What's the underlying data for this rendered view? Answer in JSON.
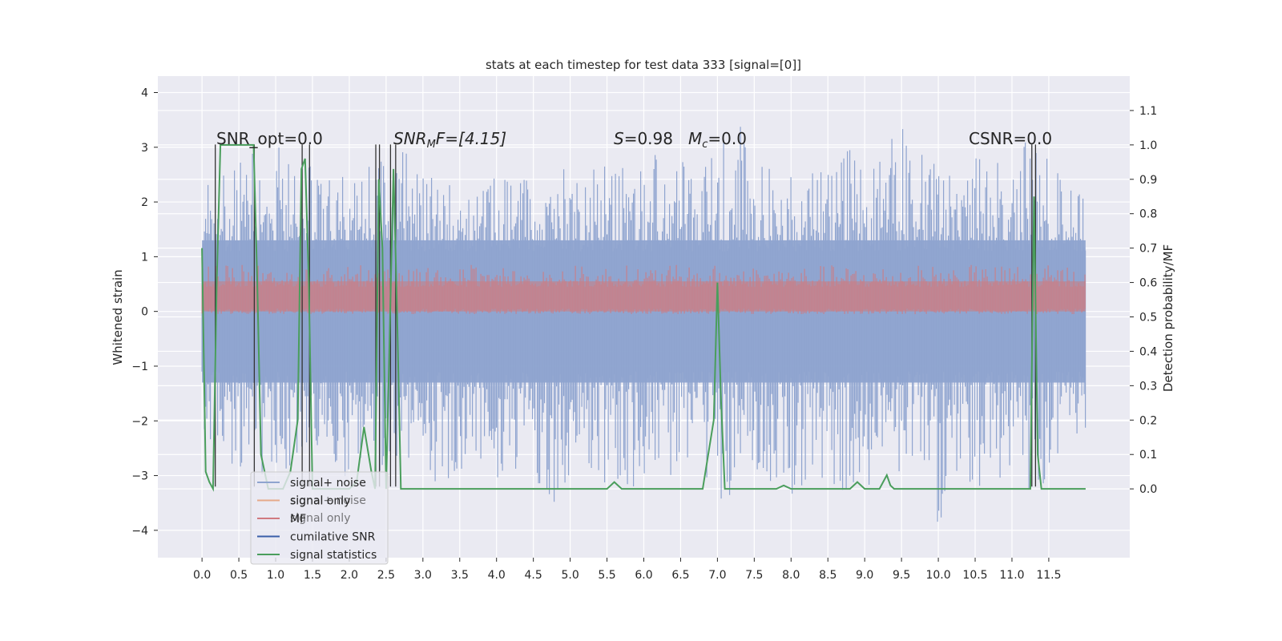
{
  "chart_data": {
    "type": "line",
    "title": "stats at each timestep for test data 333 [signal=[0]]",
    "ylabel": "Whitened strain",
    "y2label": "Detection probability/MF",
    "xlim": [
      -0.6,
      12.6
    ],
    "ylim": [
      -4.5,
      4.3
    ],
    "y2lim": [
      -0.2,
      1.2
    ],
    "xticks": [
      "0.0",
      "0.5",
      "1.0",
      "1.5",
      "2.0",
      "2.5",
      "3.0",
      "3.5",
      "4.0",
      "4.5",
      "5.0",
      "5.5",
      "6.0",
      "6.5",
      "7.0",
      "7.5",
      "8.0",
      "8.5",
      "9.0",
      "9.5",
      "10.0",
      "10.5",
      "11.0",
      "11.5"
    ],
    "yticks": [
      "4",
      "3",
      "2",
      "1",
      "0",
      "−1",
      "−2",
      "−3",
      "−4"
    ],
    "y2ticks": [
      "1.1",
      "1.0",
      "0.9",
      "0.8",
      "0.7",
      "0.6",
      "0.5",
      "0.4",
      "0.3",
      "0.2",
      "0.1",
      "0.0"
    ],
    "grid": true,
    "legend_position": "lower-left",
    "annotations": {
      "snr_opt": "SNR_opt=0.0",
      "snr_mf_main": "SNR",
      "snr_mf_sub": "M",
      "snr_mf_rest": "F=[4.15]",
      "s_stat": "S",
      "s_value": "=0.98",
      "mc_main": "M",
      "mc_sub": "c",
      "mc_value": "=0.0",
      "csnr": "CSNR=0.0"
    },
    "legend": [
      {
        "label": "signal+ noise",
        "color": "#8fa4cf"
      },
      {
        "label": "signal only",
        "color": "#e6a98a"
      },
      {
        "label": "MF",
        "color": "#d07a80"
      },
      {
        "label": "cumilative SNR",
        "color": "#3a5ea8"
      },
      {
        "label": "signal statistics",
        "color": "#4a9e5c"
      }
    ],
    "legend_ghost": [
      "signal+ noise",
      "signal only"
    ],
    "series": [
      {
        "name": "signal+ noise",
        "axis": "left",
        "color": "#8fa4cf",
        "x_range": [
          0.0,
          12.0
        ],
        "envelope_upper": [
          2.3,
          2.6,
          2.8,
          3.0,
          3.2,
          2.9,
          2.7,
          2.6,
          2.5,
          2.8,
          2.9,
          3.0,
          2.7,
          2.4,
          2.3,
          2.2,
          2.5,
          2.6,
          2.4,
          2.6,
          2.8,
          3.0,
          2.9,
          2.7,
          2.6,
          3.1,
          2.8,
          2.6,
          2.9,
          3.9,
          2.8,
          2.6,
          2.5,
          2.7,
          2.9,
          3.0,
          2.8,
          3.0,
          3.5,
          2.9,
          2.7,
          2.6,
          3.0,
          2.8,
          2.9,
          3.2,
          2.8,
          2.3,
          2.2
        ],
        "envelope_lower": [
          -2.2,
          -2.6,
          -2.9,
          -3.1,
          -2.8,
          -3.0,
          -2.7,
          -2.9,
          -3.1,
          -3.2,
          -2.8,
          -2.6,
          -3.0,
          -3.3,
          -3.0,
          -2.8,
          -3.1,
          -2.9,
          -3.5,
          -3.7,
          -3.0,
          -2.9,
          -3.2,
          -4.1,
          -3.0,
          -2.9,
          -3.1,
          -3.3,
          -3.9,
          -3.2,
          -3.0,
          -3.2,
          -3.4,
          -3.1,
          -3.3,
          -3.5,
          -3.2,
          -3.4,
          -3.0,
          -3.2,
          -4.0,
          -3.1,
          -3.3,
          -3.2,
          -3.4,
          -3.3,
          -3.1,
          -2.6,
          -2.2
        ],
        "band": [
          -1.3,
          1.3
        ]
      },
      {
        "name": "MF",
        "axis": "left",
        "color": "#d07a80",
        "x_range": [
          0.0,
          12.0
        ],
        "band": [
          0.0,
          0.6
        ]
      },
      {
        "name": "signal statistics",
        "axis": "right",
        "color": "#4a9e5c",
        "x": [
          0.0,
          0.05,
          0.1,
          0.15,
          0.2,
          0.25,
          0.3,
          0.4,
          0.5,
          0.6,
          0.7,
          0.75,
          0.8,
          0.9,
          1.0,
          1.1,
          1.2,
          1.3,
          1.35,
          1.4,
          1.45,
          1.5,
          1.55,
          1.6,
          1.8,
          2.0,
          2.1,
          2.2,
          2.3,
          2.35,
          2.4,
          2.45,
          2.5,
          2.6,
          2.65,
          2.7,
          2.8,
          3.0,
          3.5,
          4.0,
          4.5,
          5.0,
          5.5,
          5.6,
          5.7,
          5.8,
          6.0,
          6.5,
          6.8,
          6.95,
          7.0,
          7.05,
          7.1,
          7.5,
          7.8,
          7.9,
          8.0,
          8.5,
          8.8,
          8.9,
          9.0,
          9.2,
          9.3,
          9.35,
          9.4,
          10.0,
          10.5,
          11.0,
          11.2,
          11.25,
          11.3,
          11.35,
          11.4,
          11.5,
          12.0
        ],
        "y": [
          0.7,
          0.05,
          0.02,
          0.0,
          0.6,
          1.0,
          1.0,
          1.0,
          1.0,
          1.0,
          1.0,
          0.6,
          0.1,
          0.0,
          0.0,
          0.0,
          0.05,
          0.2,
          0.93,
          0.96,
          0.6,
          0.0,
          0.0,
          0.0,
          0.0,
          0.0,
          0.02,
          0.18,
          0.05,
          0.0,
          0.9,
          0.7,
          0.0,
          0.93,
          0.5,
          0.0,
          0.0,
          0.0,
          0.0,
          0.0,
          0.0,
          0.0,
          0.0,
          0.02,
          0.0,
          0.0,
          0.0,
          0.0,
          0.0,
          0.2,
          0.6,
          0.25,
          0.0,
          0.0,
          0.0,
          0.01,
          0.0,
          0.0,
          0.0,
          0.02,
          0.0,
          0.0,
          0.04,
          0.01,
          0.0,
          0.0,
          0.0,
          0.0,
          0.0,
          0.0,
          0.85,
          0.1,
          0.0,
          0.0,
          0.0
        ]
      }
    ],
    "vertical_markers": [
      0.18,
      0.71,
      1.36,
      1.46,
      2.36,
      2.41,
      2.56,
      2.63,
      11.27,
      11.32
    ]
  }
}
